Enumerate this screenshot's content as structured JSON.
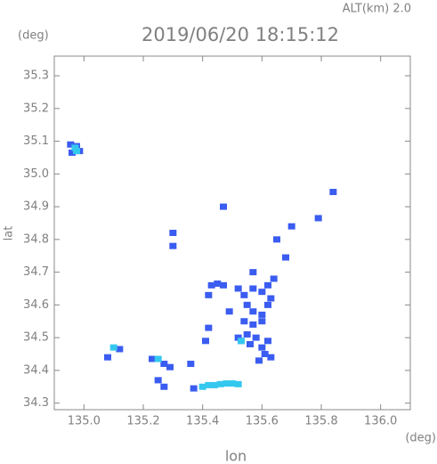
{
  "chart_data": {
    "type": "scatter",
    "title": "2019/06/20 18:15:12",
    "subtitle": "ALT(km) 2.0",
    "x_label": "lon",
    "y_label": "lat",
    "x_unit": "(deg)",
    "y_unit": "(deg)",
    "xlim": [
      134.9,
      136.1
    ],
    "ylim": [
      34.28,
      35.36
    ],
    "xticks": [
      {
        "value": 135,
        "label": "135.0"
      },
      135.2,
      135.4,
      135.6,
      135.8,
      {
        "value": 136,
        "label": "136.0"
      }
    ],
    "yticks": [
      34.3,
      34.4,
      34.5,
      34.6,
      34.7,
      34.8,
      34.9,
      {
        "value": 35,
        "label": "35.0"
      },
      35.1,
      35.2,
      35.3
    ],
    "series": [
      {
        "color": "#3a5cf0",
        "x": [
          134.955,
          134.975,
          134.985,
          134.96,
          135.47,
          135.84,
          135.79,
          135.7,
          135.65,
          135.3,
          135.3,
          135.68,
          135.43,
          135.45,
          135.47,
          135.42,
          135.52,
          135.54,
          135.57,
          135.6,
          135.62,
          135.64,
          135.63,
          135.55,
          135.57,
          135.6,
          135.62,
          135.54,
          135.57,
          135.6,
          135.55,
          135.53,
          135.56,
          135.58,
          135.52,
          135.6,
          135.62,
          135.61,
          135.59,
          135.63,
          135.57,
          135.49,
          135.42,
          135.41,
          135.23,
          135.27,
          135.29,
          135.36,
          135.12,
          135.08,
          135.25,
          135.27,
          135.37
        ],
        "y": [
          35.09,
          35.085,
          35.07,
          35.065,
          34.9,
          34.945,
          34.865,
          34.84,
          34.8,
          34.82,
          34.78,
          34.745,
          34.66,
          34.665,
          34.66,
          34.63,
          34.65,
          34.63,
          34.65,
          34.64,
          34.66,
          34.68,
          34.62,
          34.6,
          34.58,
          34.57,
          34.6,
          34.55,
          34.54,
          34.55,
          34.51,
          34.49,
          34.48,
          34.5,
          34.5,
          34.47,
          34.49,
          34.45,
          34.43,
          34.44,
          34.7,
          34.58,
          34.53,
          34.49,
          34.435,
          34.42,
          34.41,
          34.42,
          34.465,
          34.44,
          34.37,
          34.35,
          34.345
        ]
      },
      {
        "color": "#35c8ee",
        "x": [
          134.97,
          134.975,
          135.25,
          135.1,
          135.53,
          135.4,
          135.42,
          135.44,
          135.46,
          135.48,
          135.5,
          135.52
        ],
        "y": [
          35.08,
          35.07,
          34.435,
          34.47,
          34.49,
          34.35,
          34.355,
          34.355,
          34.358,
          34.36,
          34.36,
          34.358
        ]
      }
    ]
  }
}
